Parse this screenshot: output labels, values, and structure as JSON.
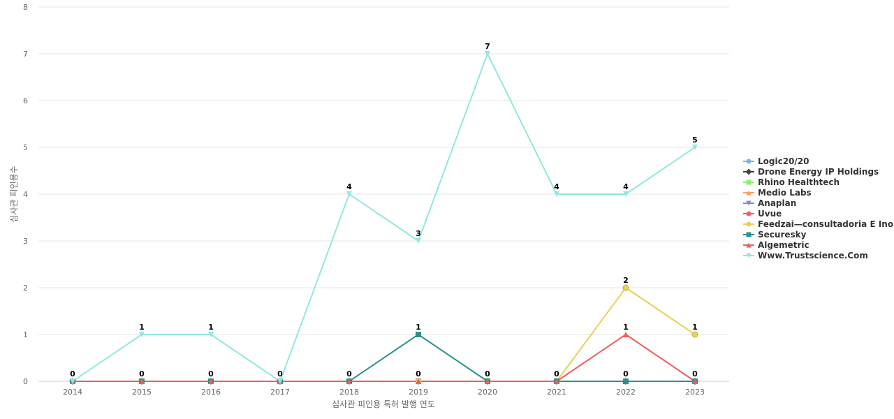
{
  "chart_data": {
    "type": "line",
    "xlabel": "심사관 피인용 특허 발행 연도",
    "ylabel": "심사관 피인용수",
    "categories": [
      "2014",
      "2015",
      "2016",
      "2017",
      "2018",
      "2019",
      "2020",
      "2021",
      "2022",
      "2023"
    ],
    "ylim": [
      0,
      8
    ],
    "yticks": [
      0,
      1,
      2,
      3,
      4,
      5,
      6,
      7,
      8
    ],
    "grid": true,
    "legend_position": "right",
    "series": [
      {
        "name": "Logic20/20",
        "color": "#7cb5ec",
        "marker": "circle",
        "values": [
          0,
          0,
          0,
          0,
          0,
          0,
          0,
          0,
          0,
          0
        ]
      },
      {
        "name": "Drone Energy IP Holdings",
        "color": "#434348",
        "marker": "diamond",
        "values": [
          0,
          0,
          0,
          0,
          0,
          0,
          0,
          0,
          0,
          0
        ]
      },
      {
        "name": "Rhino Healthtech",
        "color": "#90ed7d",
        "marker": "square",
        "values": [
          0,
          0,
          0,
          0,
          0,
          0,
          0,
          0,
          0,
          0
        ]
      },
      {
        "name": "Medio Labs",
        "color": "#f7a35c",
        "marker": "triangle",
        "values": [
          0,
          0,
          0,
          0,
          0,
          0,
          0,
          0,
          0,
          0
        ]
      },
      {
        "name": "Anaplan",
        "color": "#8085e9",
        "marker": "triangle-down",
        "values": [
          0,
          0,
          0,
          0,
          0,
          0,
          0,
          0,
          0,
          0
        ]
      },
      {
        "name": "Uvue",
        "color": "#f15c80",
        "marker": "circle",
        "values": [
          0,
          0,
          0,
          0,
          0,
          0,
          0,
          0,
          0,
          0
        ]
      },
      {
        "name": "Feedzai—consultadoria E Ino...",
        "color": "#e4d354",
        "marker": "circle",
        "values": [
          0,
          0,
          0,
          0,
          0,
          0,
          0,
          0,
          2,
          1
        ]
      },
      {
        "name": "Securesky",
        "color": "#2b908f",
        "marker": "square",
        "values": [
          0,
          0,
          0,
          0,
          0,
          1,
          0,
          0,
          0,
          0
        ]
      },
      {
        "name": "Algemetric",
        "color": "#f45b5b",
        "marker": "triangle",
        "values": [
          0,
          0,
          0,
          0,
          0,
          0,
          0,
          0,
          1,
          0
        ]
      },
      {
        "name": "Www.Trustscience.Com",
        "color": "#91e8e1",
        "marker": "triangle-down",
        "values": [
          0,
          1,
          1,
          0,
          4,
          3,
          7,
          4,
          4,
          5
        ]
      }
    ],
    "data_labels": {
      "top": [
        0,
        1,
        1,
        0,
        4,
        3,
        7,
        4,
        4,
        5
      ],
      "middle": [
        null,
        null,
        null,
        null,
        null,
        1,
        null,
        null,
        2,
        1
      ],
      "middle2": [
        null,
        null,
        null,
        null,
        null,
        null,
        null,
        null,
        1,
        null
      ],
      "bottom": [
        0,
        0,
        0,
        0,
        0,
        0,
        0,
        0,
        0,
        0
      ]
    }
  }
}
